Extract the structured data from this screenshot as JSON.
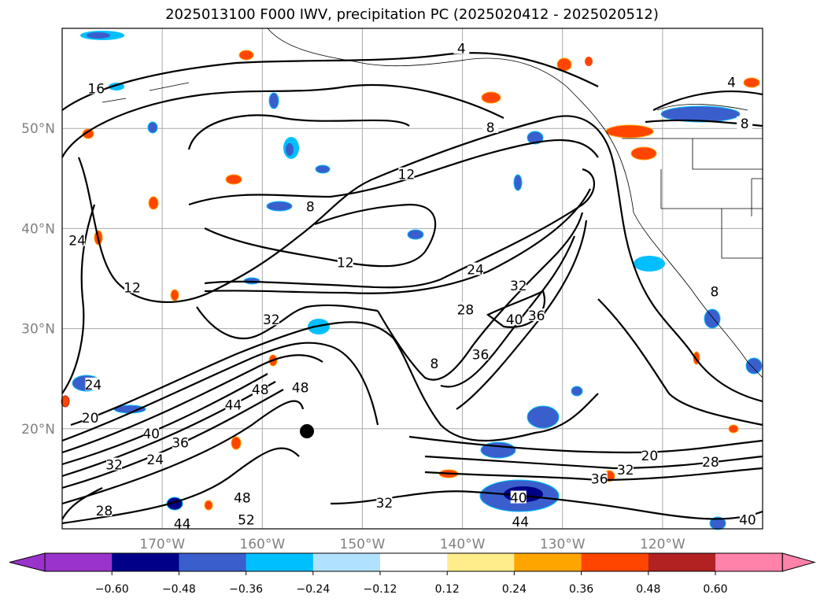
{
  "title": "2025013100 F000 IWV, precipitation PC (2025020412 - 2025020512)",
  "map": {
    "lon_range": [
      -180,
      -110
    ],
    "lat_range": [
      10,
      60
    ],
    "lon_ticks": [
      {
        "lon": -170,
        "label": "170°W"
      },
      {
        "lon": -160,
        "label": "160°W"
      },
      {
        "lon": -150,
        "label": "150°W"
      },
      {
        "lon": -140,
        "label": "140°W"
      },
      {
        "lon": -130,
        "label": "130°W"
      },
      {
        "lon": -120,
        "label": "120°W"
      }
    ],
    "lat_ticks": [
      {
        "lat": 50,
        "label": "50°N"
      },
      {
        "lat": 40,
        "label": "40°N"
      },
      {
        "lat": 30,
        "label": "30°N"
      },
      {
        "lat": 20,
        "label": "20°N"
      }
    ],
    "contour_labels": [
      {
        "t": "16",
        "lon": -176.6,
        "lat": 54.0
      },
      {
        "t": "4",
        "lon": -140.1,
        "lat": 58.0
      },
      {
        "t": "4",
        "lon": -113.1,
        "lat": 54.6
      },
      {
        "t": "8",
        "lon": -111.8,
        "lat": 50.5
      },
      {
        "t": "8",
        "lon": -137.2,
        "lat": 50.1
      },
      {
        "t": "12",
        "lon": -145.6,
        "lat": 45.4
      },
      {
        "t": "8",
        "lon": -155.2,
        "lat": 42.2
      },
      {
        "t": "24",
        "lon": -178.5,
        "lat": 38.8
      },
      {
        "t": "12",
        "lon": -151.7,
        "lat": 36.6
      },
      {
        "t": "12",
        "lon": -173.0,
        "lat": 34.1
      },
      {
        "t": "24",
        "lon": -138.7,
        "lat": 35.9
      },
      {
        "t": "32",
        "lon": -134.4,
        "lat": 34.3
      },
      {
        "t": "28",
        "lon": -139.7,
        "lat": 31.9
      },
      {
        "t": "40",
        "lon": -134.8,
        "lat": 30.9
      },
      {
        "t": "36",
        "lon": -132.6,
        "lat": 31.3
      },
      {
        "t": "32",
        "lon": -159.1,
        "lat": 30.9
      },
      {
        "t": "8",
        "lon": -114.8,
        "lat": 33.7
      },
      {
        "t": "36",
        "lon": -138.2,
        "lat": 27.4
      },
      {
        "t": "8",
        "lon": -142.8,
        "lat": 26.5
      },
      {
        "t": "48",
        "lon": -156.2,
        "lat": 24.1
      },
      {
        "t": "48",
        "lon": -160.2,
        "lat": 23.9
      },
      {
        "t": "44",
        "lon": -162.9,
        "lat": 22.4
      },
      {
        "t": "24",
        "lon": -176.9,
        "lat": 24.4
      },
      {
        "t": "20",
        "lon": -177.2,
        "lat": 21.1
      },
      {
        "t": "40",
        "lon": -171.1,
        "lat": 19.5
      },
      {
        "t": "36",
        "lon": -168.2,
        "lat": 18.6
      },
      {
        "t": "32",
        "lon": -174.8,
        "lat": 16.4
      },
      {
        "t": "24",
        "lon": -170.7,
        "lat": 16.9
      },
      {
        "t": "28",
        "lon": -175.8,
        "lat": 11.8
      },
      {
        "t": "44",
        "lon": -168.0,
        "lat": 10.5
      },
      {
        "t": "48",
        "lon": -162.0,
        "lat": 13.1
      },
      {
        "t": "52",
        "lon": -161.6,
        "lat": 10.9
      },
      {
        "t": "32",
        "lon": -147.8,
        "lat": 12.6
      },
      {
        "t": "40",
        "lon": -134.4,
        "lat": 13.1
      },
      {
        "t": "44",
        "lon": -134.2,
        "lat": 10.7
      },
      {
        "t": "36",
        "lon": -126.3,
        "lat": 15.0
      },
      {
        "t": "32",
        "lon": -123.7,
        "lat": 15.9
      },
      {
        "t": "20",
        "lon": -121.3,
        "lat": 17.3
      },
      {
        "t": "28",
        "lon": -115.2,
        "lat": 16.7
      },
      {
        "t": "40",
        "lon": -111.5,
        "lat": 10.9
      }
    ]
  },
  "colorbar": {
    "under_color": "#9933CC",
    "over_color": "#FF82AB",
    "colors": [
      "#9933CC",
      "#000088",
      "#3A5FCD",
      "#00BFFF",
      "#B0E2FF",
      "#FFFFFF",
      "#FFEC8B",
      "#FFA500",
      "#FF4500",
      "#B22222",
      "#FF82AB"
    ],
    "ticks": [
      "−0.60",
      "−0.48",
      "−0.36",
      "−0.24",
      "−0.12",
      "0.12",
      "0.24",
      "0.36",
      "0.48",
      "0.60"
    ]
  }
}
